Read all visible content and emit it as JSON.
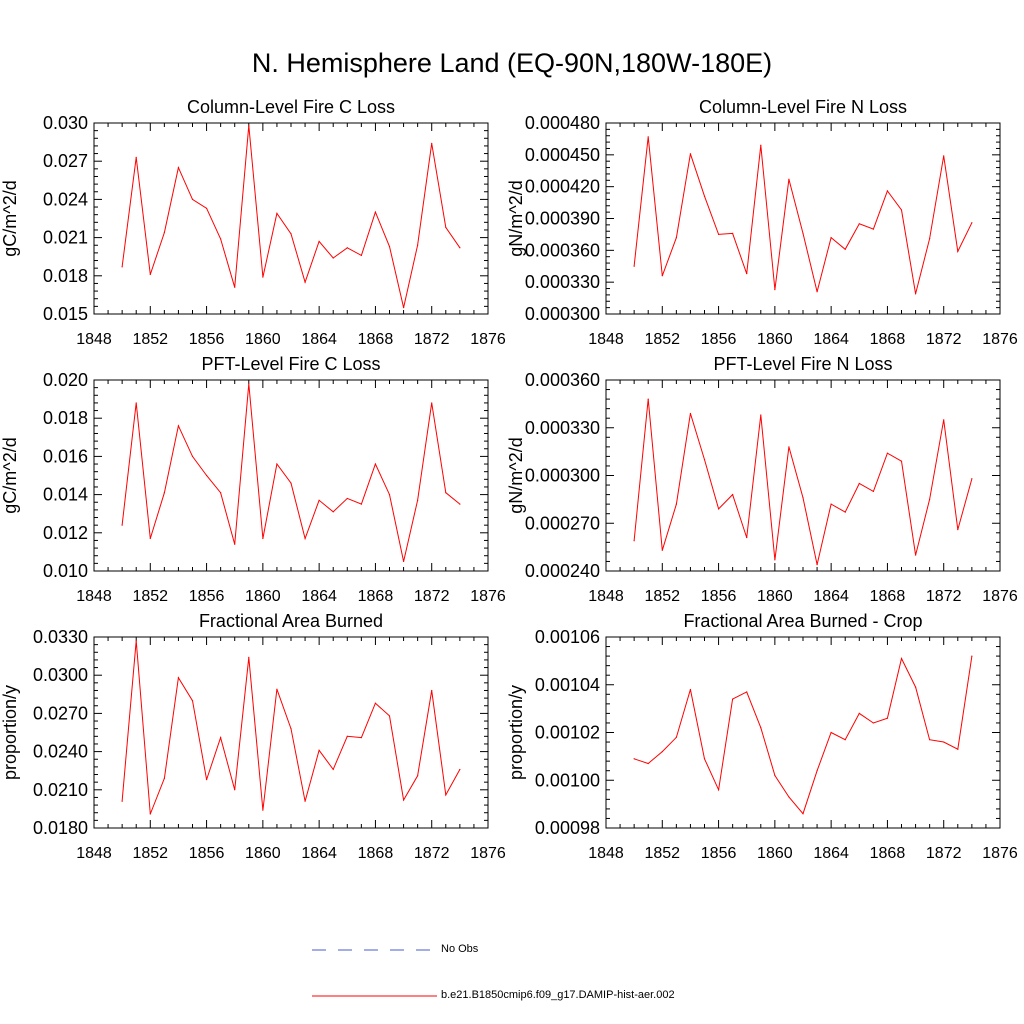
{
  "title": "N. Hemisphere Land (EQ-90N,180W-180E)",
  "legend": [
    {
      "label": "No Obs",
      "color": "#4b5bd0",
      "style": "dashed"
    },
    {
      "label": "b.e21.B1850cmip6.f09_g17.DAMIP-hist-aer.002",
      "color": "#ff0000",
      "style": "solid"
    }
  ],
  "colors": {
    "series": "#ff0000",
    "obs": "#4b5bd0",
    "axis": "#000000"
  },
  "chart_data": [
    {
      "type": "line",
      "title": "Column-Level Fire C Loss",
      "ylabel": "gC/m^2/d",
      "xlim": [
        1848,
        1876
      ],
      "xticks": [
        "1848",
        "1852",
        "1856",
        "1860",
        "1864",
        "1868",
        "1872",
        "1876"
      ],
      "ylim": [
        0.015,
        0.03
      ],
      "yticks": [
        "0.015",
        "0.018",
        "0.021",
        "0.024",
        "0.027",
        "0.030"
      ],
      "x": [
        1850,
        1851,
        1852,
        1853,
        1854,
        1855,
        1856,
        1857,
        1858,
        1859,
        1860,
        1861,
        1862,
        1863,
        1864,
        1865,
        1866,
        1867,
        1868,
        1869,
        1870,
        1871,
        1872,
        1873,
        1874
      ],
      "series": [
        {
          "name": "b.e21.B1850cmip6.f09_g17.DAMIP-hist-aer.002",
          "values": [
            0.0187,
            0.0273,
            0.0181,
            0.0214,
            0.0265,
            0.024,
            0.0233,
            0.0209,
            0.0171,
            0.0298,
            0.0179,
            0.0229,
            0.0213,
            0.0175,
            0.0207,
            0.0194,
            0.0202,
            0.0196,
            0.023,
            0.0203,
            0.0155,
            0.0204,
            0.0284,
            0.0218,
            0.0202
          ]
        }
      ]
    },
    {
      "type": "line",
      "title": "Column-Level Fire N Loss",
      "ylabel": "gN/m^2/d",
      "xlim": [
        1848,
        1876
      ],
      "xticks": [
        "1848",
        "1852",
        "1856",
        "1860",
        "1864",
        "1868",
        "1872",
        "1876"
      ],
      "ylim": [
        0.0003,
        0.00048
      ],
      "yticks": [
        "0.000300",
        "0.000330",
        "0.000360",
        "0.000390",
        "0.000420",
        "0.000450",
        "0.000480"
      ],
      "x": [
        1850,
        1851,
        1852,
        1853,
        1854,
        1855,
        1856,
        1857,
        1858,
        1859,
        1860,
        1861,
        1862,
        1863,
        1864,
        1865,
        1866,
        1867,
        1868,
        1869,
        1870,
        1871,
        1872,
        1873,
        1874
      ],
      "series": [
        {
          "name": "b.e21.B1850cmip6.f09_g17.DAMIP-hist-aer.002",
          "values": [
            0.000345,
            0.000467,
            0.000336,
            0.000372,
            0.000451,
            0.000411,
            0.000375,
            0.000376,
            0.000338,
            0.000459,
            0.000323,
            0.000427,
            0.000376,
            0.000321,
            0.000372,
            0.000361,
            0.000385,
            0.00038,
            0.000416,
            0.000398,
            0.000319,
            0.000371,
            0.000449,
            0.000359,
            0.000386
          ]
        }
      ]
    },
    {
      "type": "line",
      "title": "PFT-Level Fire C Loss",
      "ylabel": "gC/m^2/d",
      "xlim": [
        1848,
        1876
      ],
      "xticks": [
        "1848",
        "1852",
        "1856",
        "1860",
        "1864",
        "1868",
        "1872",
        "1876"
      ],
      "ylim": [
        0.01,
        0.02
      ],
      "yticks": [
        "0.010",
        "0.012",
        "0.014",
        "0.016",
        "0.018",
        "0.020"
      ],
      "x": [
        1850,
        1851,
        1852,
        1853,
        1854,
        1855,
        1856,
        1857,
        1858,
        1859,
        1860,
        1861,
        1862,
        1863,
        1864,
        1865,
        1866,
        1867,
        1868,
        1869,
        1870,
        1871,
        1872,
        1873,
        1874
      ],
      "series": [
        {
          "name": "b.e21.B1850cmip6.f09_g17.DAMIP-hist-aer.002",
          "values": [
            0.0124,
            0.0188,
            0.0117,
            0.0141,
            0.0176,
            0.016,
            0.015,
            0.0141,
            0.0114,
            0.0198,
            0.0117,
            0.0156,
            0.0146,
            0.0117,
            0.0137,
            0.0131,
            0.0138,
            0.0135,
            0.0156,
            0.014,
            0.0105,
            0.0137,
            0.0188,
            0.0141,
            0.0135
          ]
        }
      ]
    },
    {
      "type": "line",
      "title": "PFT-Level Fire N Loss",
      "ylabel": "gN/m^2/d",
      "xlim": [
        1848,
        1876
      ],
      "xticks": [
        "1848",
        "1852",
        "1856",
        "1860",
        "1864",
        "1868",
        "1872",
        "1876"
      ],
      "ylim": [
        0.00024,
        0.00036
      ],
      "yticks": [
        "0.000240",
        "0.000270",
        "0.000300",
        "0.000330",
        "0.000360"
      ],
      "x": [
        1850,
        1851,
        1852,
        1853,
        1854,
        1855,
        1856,
        1857,
        1858,
        1859,
        1860,
        1861,
        1862,
        1863,
        1864,
        1865,
        1866,
        1867,
        1868,
        1869,
        1870,
        1871,
        1872,
        1873,
        1874
      ],
      "series": [
        {
          "name": "b.e21.B1850cmip6.f09_g17.DAMIP-hist-aer.002",
          "values": [
            0.000259,
            0.000348,
            0.000253,
            0.000282,
            0.000339,
            0.00031,
            0.000279,
            0.000288,
            0.000261,
            0.000338,
            0.000247,
            0.000318,
            0.000286,
            0.000244,
            0.000282,
            0.000277,
            0.000295,
            0.00029,
            0.000314,
            0.000309,
            0.00025,
            0.000285,
            0.000335,
            0.000266,
            0.000298
          ]
        }
      ]
    },
    {
      "type": "line",
      "title": "Fractional Area Burned",
      "ylabel": "proportion/y",
      "xlim": [
        1848,
        1876
      ],
      "xticks": [
        "1848",
        "1852",
        "1856",
        "1860",
        "1864",
        "1868",
        "1872",
        "1876"
      ],
      "ylim": [
        0.018,
        0.033
      ],
      "yticks": [
        "0.0180",
        "0.0210",
        "0.0240",
        "0.0270",
        "0.0300",
        "0.0330"
      ],
      "x": [
        1850,
        1851,
        1852,
        1853,
        1854,
        1855,
        1856,
        1857,
        1858,
        1859,
        1860,
        1861,
        1862,
        1863,
        1864,
        1865,
        1866,
        1867,
        1868,
        1869,
        1870,
        1871,
        1872,
        1873,
        1874
      ],
      "series": [
        {
          "name": "b.e21.B1850cmip6.f09_g17.DAMIP-hist-aer.002",
          "values": [
            0.0201,
            0.0327,
            0.0191,
            0.0219,
            0.0298,
            0.028,
            0.0218,
            0.0251,
            0.021,
            0.0314,
            0.0194,
            0.0289,
            0.0258,
            0.0201,
            0.0241,
            0.0226,
            0.0252,
            0.0251,
            0.0278,
            0.0268,
            0.0202,
            0.0221,
            0.0288,
            0.0206,
            0.0226
          ]
        }
      ]
    },
    {
      "type": "line",
      "title": "Fractional Area Burned - Crop",
      "ylabel": "proportion/y",
      "xlim": [
        1848,
        1876
      ],
      "xticks": [
        "1848",
        "1852",
        "1856",
        "1860",
        "1864",
        "1868",
        "1872",
        "1876"
      ],
      "ylim": [
        0.00098,
        0.00106
      ],
      "yticks": [
        "0.00098",
        "0.00100",
        "0.00102",
        "0.00104",
        "0.00106"
      ],
      "x": [
        1850,
        1851,
        1852,
        1853,
        1854,
        1855,
        1856,
        1857,
        1858,
        1859,
        1860,
        1861,
        1862,
        1863,
        1864,
        1865,
        1866,
        1867,
        1868,
        1869,
        1870,
        1871,
        1872,
        1873,
        1874
      ],
      "series": [
        {
          "name": "b.e21.B1850cmip6.f09_g17.DAMIP-hist-aer.002",
          "values": [
            0.001009,
            0.001007,
            0.001012,
            0.001018,
            0.001038,
            0.001009,
            0.000996,
            0.001034,
            0.001037,
            0.001022,
            0.001002,
            0.000993,
            0.000986,
            0.001004,
            0.00102,
            0.001017,
            0.001028,
            0.001024,
            0.001026,
            0.001051,
            0.001039,
            0.001017,
            0.001016,
            0.001013,
            0.001052
          ]
        }
      ]
    }
  ]
}
